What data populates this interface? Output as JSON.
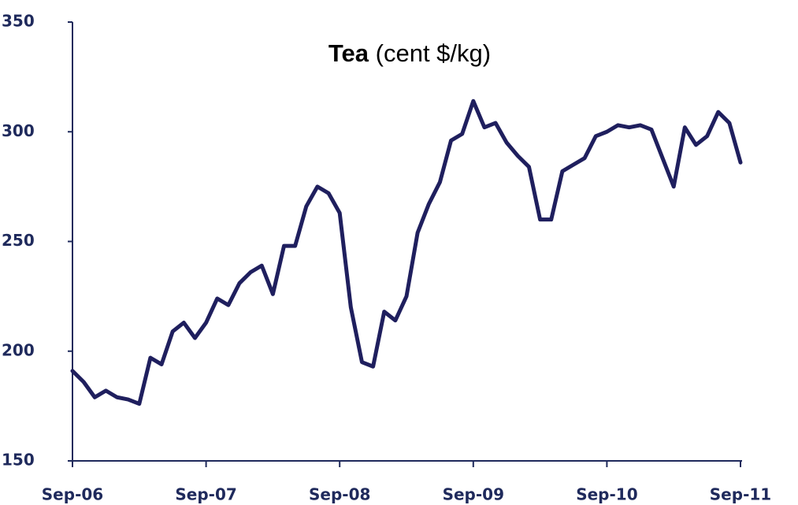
{
  "chart_data": {
    "type": "line",
    "title": "Tea",
    "unit": "(cent $/kg)",
    "categories": [
      "Sep-06",
      null,
      null,
      null,
      null,
      null,
      null,
      null,
      null,
      null,
      null,
      null,
      "Sep-07",
      null,
      null,
      null,
      null,
      null,
      null,
      null,
      null,
      null,
      null,
      null,
      "Sep-08",
      null,
      null,
      null,
      null,
      null,
      null,
      null,
      null,
      null,
      null,
      null,
      "Sep-09",
      null,
      null,
      null,
      null,
      null,
      null,
      null,
      null,
      null,
      null,
      null,
      "Sep-10",
      null,
      null,
      null,
      null,
      null,
      null,
      null,
      null,
      null,
      null,
      null,
      "Sep-11"
    ],
    "series": [
      {
        "name": "Tea",
        "color": "#1f1f5e",
        "values": [
          191,
          186,
          179,
          182,
          179,
          178,
          176,
          197,
          194,
          209,
          213,
          206,
          213,
          224,
          221,
          231,
          236,
          239,
          226,
          248,
          248,
          266,
          275,
          272,
          263,
          220,
          195,
          193,
          218,
          214,
          225,
          254,
          267,
          277,
          296,
          299,
          314,
          302,
          304,
          295,
          289,
          284,
          260,
          260,
          282,
          285,
          288,
          298,
          300,
          303,
          302,
          303,
          301,
          288,
          275,
          302,
          294,
          298,
          309,
          304,
          286
        ]
      }
    ],
    "ylim": [
      150,
      350
    ],
    "yticks": [
      150,
      200,
      250,
      300,
      350
    ]
  }
}
